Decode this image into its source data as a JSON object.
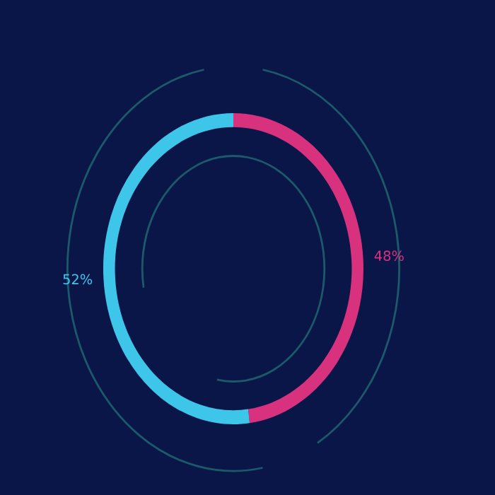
{
  "chart_data": {
    "type": "donut",
    "categories": [
      null,
      null
    ],
    "values": [
      48,
      52
    ],
    "colors": [
      "#d8327f",
      "#3ec6ea"
    ],
    "value_labels": [
      "48%",
      "52%"
    ]
  }
}
